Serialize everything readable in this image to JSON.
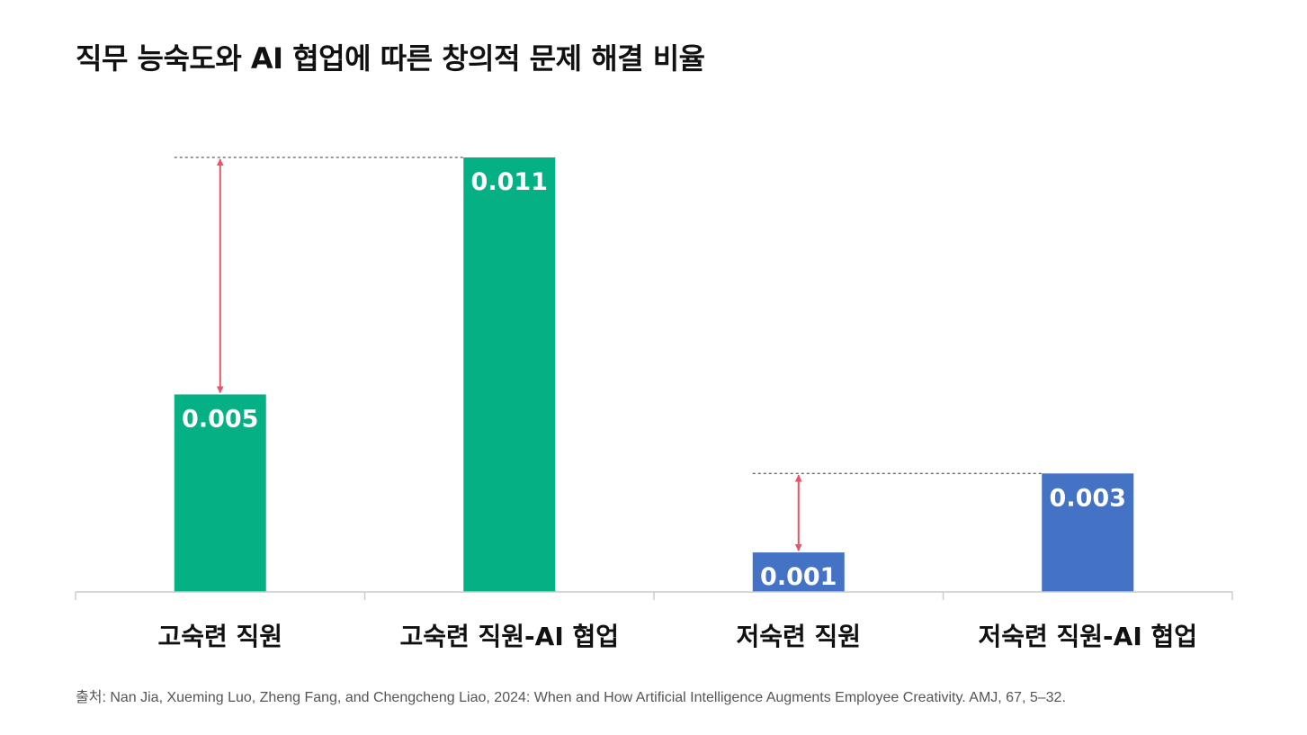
{
  "chart_data": {
    "type": "bar",
    "title": "직무 능숙도와 AI 협업에 따른 창의적 문제 해결 비율",
    "categories": [
      "고숙련 직원",
      "고숙련 직원-AI 협업",
      "저숙련 직원",
      "저숙련 직원-AI 협업"
    ],
    "values": [
      0.005,
      0.011,
      0.001,
      0.003
    ],
    "value_labels": [
      "0.005",
      "0.011",
      "0.001",
      "0.003"
    ],
    "ylim": [
      0,
      0.011
    ],
    "grid": false,
    "legend": "none",
    "bar_colors": [
      "#06b085",
      "#06b085",
      "#4472c4",
      "#4472c4"
    ],
    "annotations": [
      {
        "type": "difference-arrow",
        "from_category": 0,
        "to_category": 1,
        "from_value": 0.005,
        "to_value": 0.011,
        "color": "#e85468"
      },
      {
        "type": "difference-arrow",
        "from_category": 2,
        "to_category": 3,
        "from_value": 0.001,
        "to_value": 0.003,
        "color": "#e85468"
      }
    ]
  },
  "source": "출처: Nan Jia, Xueming Luo, Zheng Fang, and Chengcheng Liao, 2024: When and How Artificial Intelligence Augments Employee Creativity. AMJ, 67, 5–32."
}
